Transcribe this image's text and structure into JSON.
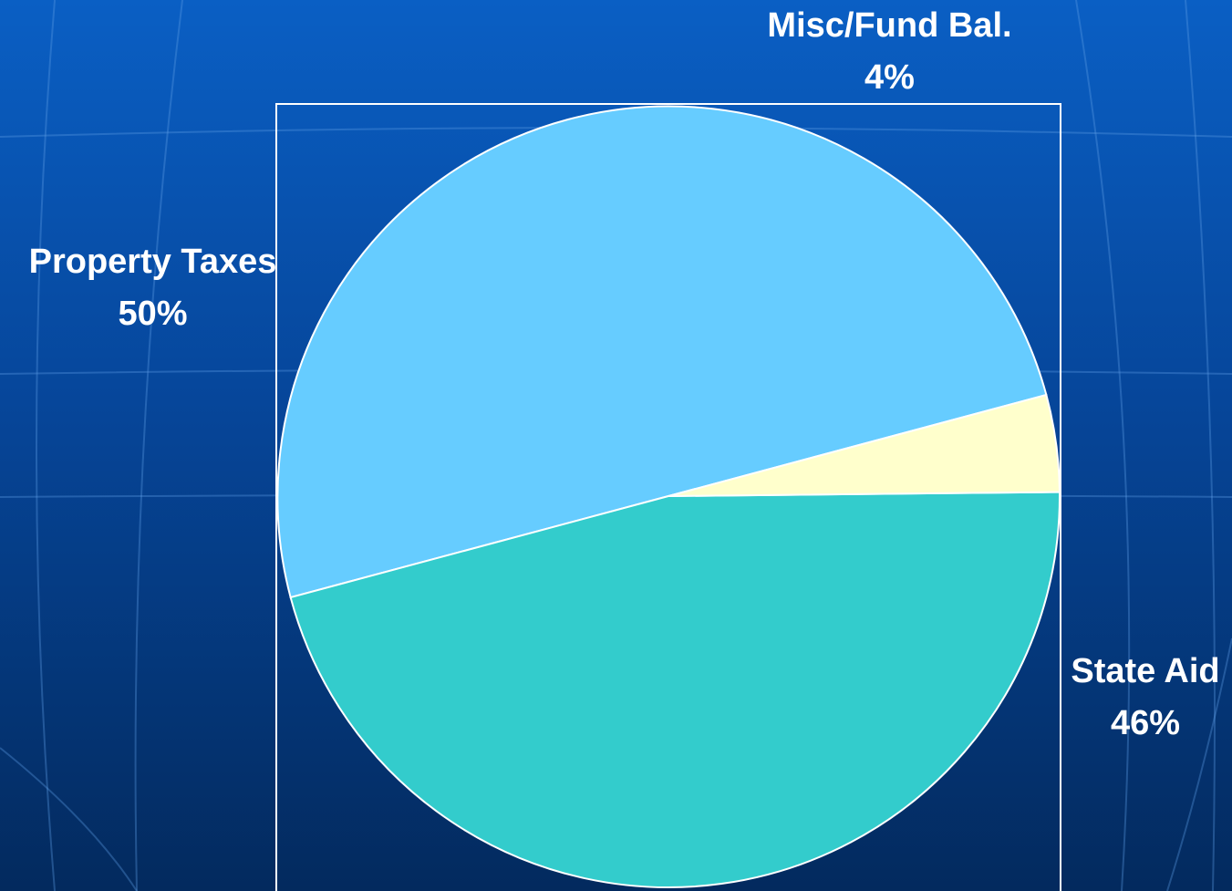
{
  "chart_data": {
    "type": "pie",
    "title": "",
    "start_angle_deg": 15,
    "direction": "counterclockwise",
    "slice_border_color": "#ffffff",
    "plot_border_color": "#ffffff",
    "slices": [
      {
        "label": "Property Taxes",
        "value": 50,
        "value_label": "50%",
        "color": "#66ccff"
      },
      {
        "label": "State Aid",
        "value": 46,
        "value_label": "46%",
        "color": "#33cccc"
      },
      {
        "label": "Misc/Fund Bal.",
        "value": 4,
        "value_label": "4%",
        "color": "#ffffcc"
      }
    ]
  },
  "colors": {
    "background_top": "#0a5fc4",
    "background_bottom": "#032a5e",
    "label_text": "#ffffff"
  }
}
